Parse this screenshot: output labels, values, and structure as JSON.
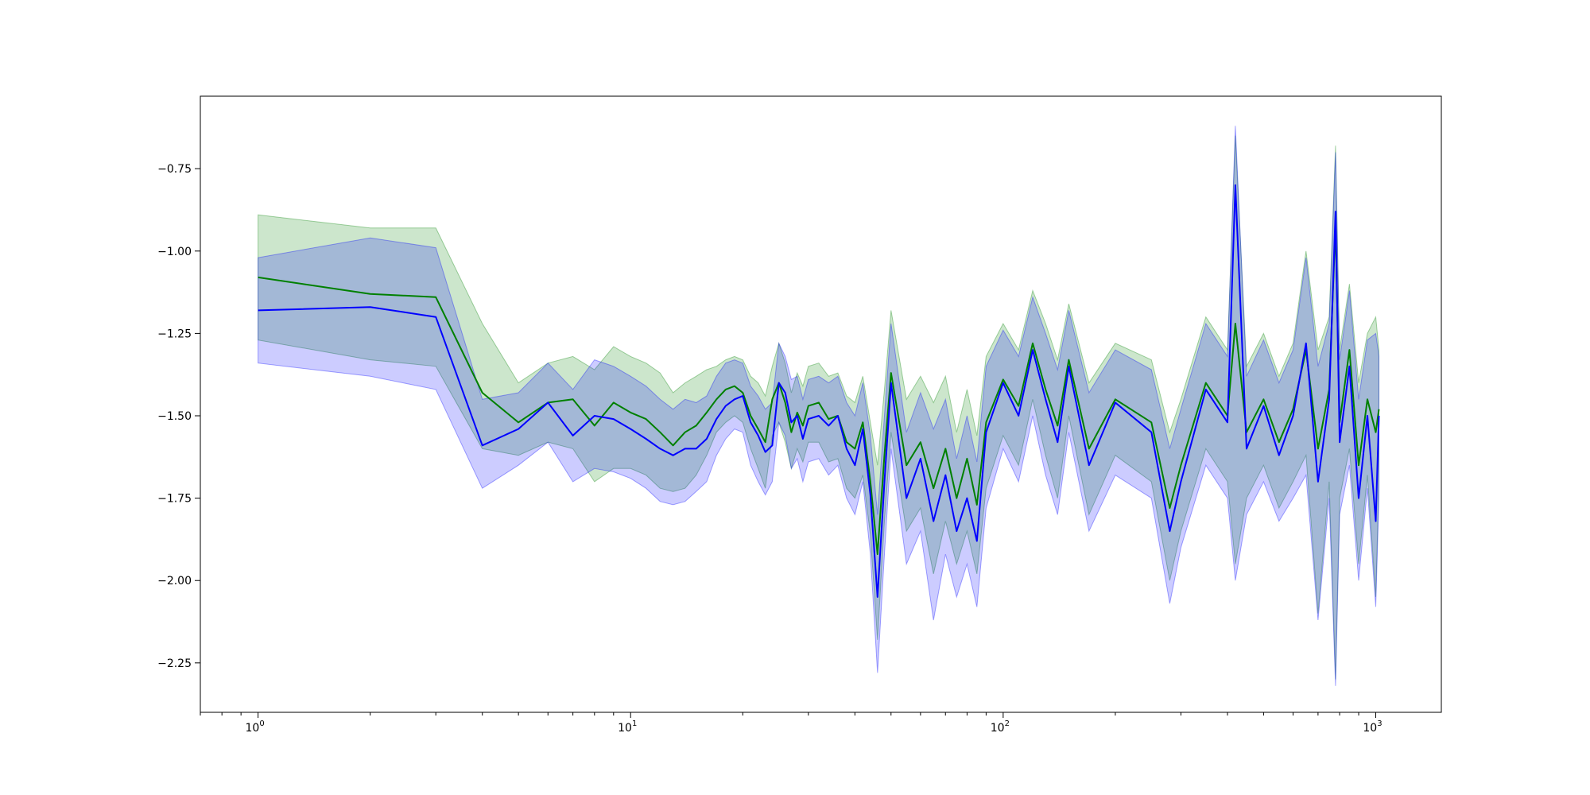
{
  "chart_data": {
    "type": "line",
    "title": "",
    "xlabel": "",
    "ylabel": "",
    "xscale": "log",
    "xlim": [
      0.7,
      1500
    ],
    "ylim": [
      -2.4,
      -0.53
    ],
    "grid": false,
    "x_ticks": [
      {
        "value": 1,
        "base": "10",
        "exp": "0"
      },
      {
        "value": 10,
        "base": "10",
        "exp": "1"
      },
      {
        "value": 100,
        "base": "10",
        "exp": "2"
      },
      {
        "value": 1000,
        "base": "10",
        "exp": "3"
      }
    ],
    "y_ticks": [
      {
        "value": -0.75,
        "label": "−0.75"
      },
      {
        "value": -1.0,
        "label": "−1.00"
      },
      {
        "value": -1.25,
        "label": "−1.25"
      },
      {
        "value": -1.5,
        "label": "−1.50"
      },
      {
        "value": -1.75,
        "label": "−1.75"
      },
      {
        "value": -2.0,
        "label": "−2.00"
      },
      {
        "value": -2.25,
        "label": "−2.25"
      }
    ],
    "colors": {
      "green": "#008000",
      "blue": "#0000ff"
    },
    "series": [
      {
        "color": "#008000",
        "band_opacity": 0.2,
        "x": [
          1,
          2,
          3,
          4,
          5,
          6,
          7,
          8,
          9,
          10,
          11,
          12,
          13,
          14,
          15,
          16,
          17,
          18,
          19,
          20,
          21,
          22,
          23,
          24,
          25,
          26,
          27,
          28,
          29,
          30,
          32,
          34,
          36,
          38,
          40,
          42,
          44,
          46,
          48,
          50,
          55,
          60,
          65,
          70,
          75,
          80,
          85,
          90,
          100,
          110,
          120,
          130,
          140,
          150,
          170,
          200,
          250,
          280,
          300,
          350,
          400,
          420,
          450,
          500,
          550,
          600,
          650,
          700,
          750,
          780,
          800,
          850,
          900,
          950,
          1000,
          1020
        ],
        "y": [
          -1.08,
          -1.13,
          -1.14,
          -1.43,
          -1.52,
          -1.46,
          -1.45,
          -1.53,
          -1.46,
          -1.49,
          -1.51,
          -1.55,
          -1.59,
          -1.55,
          -1.53,
          -1.49,
          -1.45,
          -1.42,
          -1.41,
          -1.43,
          -1.5,
          -1.54,
          -1.58,
          -1.45,
          -1.4,
          -1.46,
          -1.55,
          -1.49,
          -1.53,
          -1.47,
          -1.46,
          -1.51,
          -1.5,
          -1.58,
          -1.6,
          -1.52,
          -1.7,
          -1.92,
          -1.62,
          -1.37,
          -1.65,
          -1.58,
          -1.72,
          -1.6,
          -1.75,
          -1.63,
          -1.77,
          -1.52,
          -1.39,
          -1.47,
          -1.28,
          -1.42,
          -1.53,
          -1.33,
          -1.6,
          -1.45,
          -1.52,
          -1.78,
          -1.65,
          -1.4,
          -1.5,
          -1.22,
          -1.55,
          -1.45,
          -1.58,
          -1.48,
          -1.3,
          -1.6,
          -1.42,
          -0.92,
          -1.52,
          -1.3,
          -1.65,
          -1.45,
          -1.55,
          -1.48
        ],
        "lower": [
          -1.27,
          -1.33,
          -1.35,
          -1.6,
          -1.62,
          -1.58,
          -1.6,
          -1.7,
          -1.66,
          -1.66,
          -1.68,
          -1.72,
          -1.73,
          -1.72,
          -1.68,
          -1.62,
          -1.55,
          -1.52,
          -1.5,
          -1.52,
          -1.6,
          -1.66,
          -1.72,
          -1.56,
          -1.52,
          -1.58,
          -1.66,
          -1.6,
          -1.64,
          -1.58,
          -1.58,
          -1.64,
          -1.63,
          -1.72,
          -1.75,
          -1.68,
          -1.86,
          -2.18,
          -1.82,
          -1.55,
          -1.85,
          -1.78,
          -1.98,
          -1.82,
          -1.95,
          -1.85,
          -1.98,
          -1.72,
          -1.56,
          -1.65,
          -1.45,
          -1.62,
          -1.75,
          -1.5,
          -1.8,
          -1.62,
          -1.7,
          -2.0,
          -1.85,
          -1.6,
          -1.7,
          -1.95,
          -1.75,
          -1.65,
          -1.78,
          -1.7,
          -1.62,
          -2.1,
          -1.7,
          -2.3,
          -1.75,
          -1.6,
          -1.95,
          -1.68,
          -2.05,
          -1.7
        ],
        "upper": [
          -0.89,
          -0.93,
          -0.93,
          -1.22,
          -1.4,
          -1.34,
          -1.32,
          -1.36,
          -1.29,
          -1.32,
          -1.34,
          -1.37,
          -1.43,
          -1.4,
          -1.38,
          -1.36,
          -1.35,
          -1.33,
          -1.32,
          -1.33,
          -1.38,
          -1.4,
          -1.44,
          -1.35,
          -1.28,
          -1.34,
          -1.43,
          -1.37,
          -1.41,
          -1.35,
          -1.34,
          -1.38,
          -1.37,
          -1.44,
          -1.46,
          -1.38,
          -1.52,
          -1.65,
          -1.42,
          -1.18,
          -1.45,
          -1.38,
          -1.46,
          -1.38,
          -1.55,
          -1.42,
          -1.56,
          -1.32,
          -1.22,
          -1.3,
          -1.12,
          -1.22,
          -1.33,
          -1.16,
          -1.4,
          -1.28,
          -1.33,
          -1.55,
          -1.45,
          -1.2,
          -1.3,
          -0.65,
          -1.35,
          -1.25,
          -1.38,
          -1.28,
          -1.0,
          -1.3,
          -1.2,
          -0.68,
          -1.3,
          -1.1,
          -1.4,
          -1.25,
          -1.2,
          -1.3
        ]
      },
      {
        "color": "#0000ff",
        "band_opacity": 0.2,
        "x": [
          1,
          2,
          3,
          4,
          5,
          6,
          7,
          8,
          9,
          10,
          11,
          12,
          13,
          14,
          15,
          16,
          17,
          18,
          19,
          20,
          21,
          22,
          23,
          24,
          25,
          26,
          27,
          28,
          29,
          30,
          32,
          34,
          36,
          38,
          40,
          42,
          44,
          46,
          48,
          50,
          55,
          60,
          65,
          70,
          75,
          80,
          85,
          90,
          100,
          110,
          120,
          130,
          140,
          150,
          170,
          200,
          250,
          280,
          300,
          350,
          400,
          420,
          450,
          500,
          550,
          600,
          650,
          700,
          750,
          780,
          800,
          850,
          900,
          950,
          1000,
          1020
        ],
        "y": [
          -1.18,
          -1.17,
          -1.2,
          -1.59,
          -1.54,
          -1.46,
          -1.56,
          -1.5,
          -1.51,
          -1.54,
          -1.57,
          -1.6,
          -1.62,
          -1.6,
          -1.6,
          -1.57,
          -1.51,
          -1.47,
          -1.45,
          -1.44,
          -1.52,
          -1.56,
          -1.61,
          -1.59,
          -1.4,
          -1.43,
          -1.52,
          -1.5,
          -1.57,
          -1.51,
          -1.5,
          -1.53,
          -1.5,
          -1.6,
          -1.65,
          -1.54,
          -1.74,
          -2.05,
          -1.7,
          -1.4,
          -1.75,
          -1.63,
          -1.82,
          -1.68,
          -1.85,
          -1.75,
          -1.88,
          -1.55,
          -1.4,
          -1.5,
          -1.3,
          -1.45,
          -1.58,
          -1.35,
          -1.65,
          -1.46,
          -1.55,
          -1.85,
          -1.7,
          -1.42,
          -1.52,
          -0.8,
          -1.6,
          -1.47,
          -1.62,
          -1.5,
          -1.28,
          -1.7,
          -1.45,
          -0.88,
          -1.58,
          -1.35,
          -1.75,
          -1.5,
          -1.82,
          -1.5
        ],
        "lower": [
          -1.34,
          -1.38,
          -1.42,
          -1.72,
          -1.65,
          -1.58,
          -1.7,
          -1.66,
          -1.67,
          -1.69,
          -1.72,
          -1.76,
          -1.77,
          -1.76,
          -1.73,
          -1.7,
          -1.62,
          -1.57,
          -1.54,
          -1.55,
          -1.65,
          -1.7,
          -1.74,
          -1.7,
          -1.52,
          -1.56,
          -1.66,
          -1.63,
          -1.7,
          -1.64,
          -1.63,
          -1.68,
          -1.65,
          -1.75,
          -1.8,
          -1.7,
          -1.92,
          -2.28,
          -1.92,
          -1.6,
          -1.95,
          -1.85,
          -2.12,
          -1.92,
          -2.05,
          -1.95,
          -2.08,
          -1.78,
          -1.6,
          -1.7,
          -1.5,
          -1.68,
          -1.8,
          -1.55,
          -1.85,
          -1.68,
          -1.75,
          -2.07,
          -1.9,
          -1.65,
          -1.75,
          -2.0,
          -1.8,
          -1.7,
          -1.82,
          -1.75,
          -1.68,
          -2.12,
          -1.75,
          -2.32,
          -1.8,
          -1.65,
          -2.0,
          -1.72,
          -2.08,
          -1.75
        ],
        "upper": [
          -1.02,
          -0.96,
          -0.99,
          -1.45,
          -1.43,
          -1.34,
          -1.42,
          -1.33,
          -1.35,
          -1.38,
          -1.41,
          -1.45,
          -1.48,
          -1.45,
          -1.46,
          -1.44,
          -1.38,
          -1.34,
          -1.33,
          -1.34,
          -1.41,
          -1.44,
          -1.48,
          -1.46,
          -1.28,
          -1.32,
          -1.39,
          -1.38,
          -1.45,
          -1.39,
          -1.38,
          -1.4,
          -1.38,
          -1.46,
          -1.5,
          -1.4,
          -1.56,
          -1.8,
          -1.5,
          -1.22,
          -1.55,
          -1.43,
          -1.54,
          -1.45,
          -1.63,
          -1.5,
          -1.64,
          -1.35,
          -1.24,
          -1.32,
          -1.14,
          -1.25,
          -1.36,
          -1.18,
          -1.43,
          -1.3,
          -1.36,
          -1.6,
          -1.48,
          -1.22,
          -1.32,
          -0.62,
          -1.38,
          -1.27,
          -1.4,
          -1.3,
          -1.02,
          -1.35,
          -1.22,
          -0.7,
          -1.33,
          -1.12,
          -1.45,
          -1.27,
          -1.25,
          -1.32
        ]
      }
    ]
  }
}
